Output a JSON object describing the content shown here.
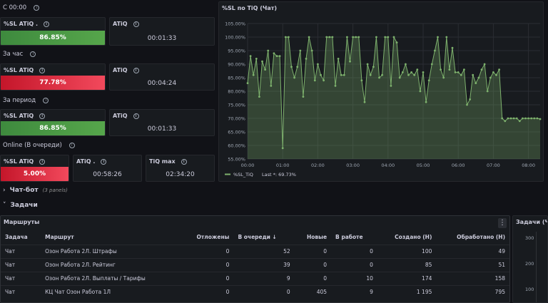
{
  "rows": {
    "r1": "С 00:00",
    "r2": "За час",
    "r3": "За период",
    "r4": "Online (В очереди)"
  },
  "stats": {
    "s1_sl": {
      "title": "%SL ATiQ .",
      "value": "86.85%"
    },
    "s1_atiq": {
      "title": "ATiQ",
      "value": "00:01:33"
    },
    "s2_sl": {
      "title": "%SL ATiQ",
      "value": "77.78%"
    },
    "s2_atiq": {
      "title": "ATiQ",
      "value": "00:04:24"
    },
    "s3_sl": {
      "title": "%SL ATiQ",
      "value": "86.85%"
    },
    "s3_atiq": {
      "title": "ATiQ",
      "value": "00:01:33"
    },
    "s4_sl": {
      "title": "%SL ATiQ",
      "value": "5.00%"
    },
    "s4_atiq": {
      "title": "ATiQ .",
      "value": "00:58:26"
    },
    "s4_max": {
      "title": "TiQ max",
      "value": "02:34:20"
    }
  },
  "chart_panel": {
    "title": "%SL по TiQ (Чат)"
  },
  "sections": {
    "chatbot": "Чат-бот",
    "chatbot_note": "(3 panels)",
    "tasks": "Задачи"
  },
  "table_panel": {
    "title": "Маршруты",
    "menu_icon": "kebab-menu-icon",
    "columns": [
      "Задача",
      "Маршрут",
      "Отложены",
      "В очереди ↓",
      "Новые",
      "В работе",
      "Создано (Н)",
      "Обработано (Н)"
    ],
    "rows": [
      [
        "Чат",
        "Озон Работа 2Л. Штрафы",
        "0",
        "52",
        "0",
        "0",
        "100",
        "49"
      ],
      [
        "Чат",
        "Озон Работа 2Л. Рейтинг",
        "0",
        "39",
        "0",
        "0",
        "85",
        "51"
      ],
      [
        "Чат",
        "Озон Работа 2Л. Выплаты / Тарифы",
        "0",
        "9",
        "0",
        "10",
        "174",
        "158"
      ],
      [
        "Чат",
        "КЦ Чат Озон Работа 1Л",
        "0",
        "0",
        "405",
        "9",
        "1 195",
        "795"
      ]
    ]
  },
  "right_panel": {
    "title": "Задачи (Ча",
    "ticks": [
      "100",
      "200",
      "300"
    ]
  },
  "colors": {
    "green": "#56a64b",
    "red": "#f2495c",
    "series": "#7eb26d"
  },
  "chart_data": {
    "type": "area",
    "title": "%SL по TiQ (Чат)",
    "x": [
      "00:00",
      "00:05",
      "00:10",
      "00:15",
      "00:20",
      "00:25",
      "00:30",
      "00:35",
      "00:40",
      "00:45",
      "00:50",
      "00:55",
      "01:00",
      "01:05",
      "01:10",
      "01:15",
      "01:20",
      "01:25",
      "01:30",
      "01:35",
      "01:40",
      "01:45",
      "01:50",
      "01:55",
      "02:00",
      "02:05",
      "02:10",
      "02:15",
      "02:20",
      "02:25",
      "02:30",
      "02:35",
      "02:40",
      "02:45",
      "02:50",
      "02:55",
      "03:00",
      "03:05",
      "03:10",
      "03:15",
      "03:20",
      "03:25",
      "03:30",
      "03:35",
      "03:40",
      "03:45",
      "03:50",
      "03:55",
      "04:00",
      "04:05",
      "04:10",
      "04:15",
      "04:20",
      "04:25",
      "04:30",
      "04:35",
      "04:40",
      "04:45",
      "04:50",
      "04:55",
      "05:00",
      "05:05",
      "05:10",
      "05:15",
      "05:20",
      "05:25",
      "05:30",
      "05:35",
      "05:40",
      "05:45",
      "05:50",
      "05:55",
      "06:00",
      "06:05",
      "06:10",
      "06:15",
      "06:20",
      "06:25",
      "06:30",
      "06:35",
      "06:40",
      "06:45",
      "06:50",
      "06:55",
      "07:00",
      "07:05",
      "07:10",
      "07:15",
      "07:20",
      "07:25",
      "07:30",
      "07:35",
      "07:40",
      "07:45",
      "07:50",
      "07:55",
      "08:00",
      "08:05",
      "08:10",
      "08:15",
      "08:20"
    ],
    "series": [
      {
        "name": "%SL_TiQ",
        "values": [
          83,
          93,
          86,
          92,
          78,
          91,
          88,
          95,
          82,
          94,
          93,
          93,
          59,
          100,
          100,
          89,
          85,
          89,
          95,
          78,
          92,
          100,
          95,
          84,
          90,
          86,
          84,
          100,
          100,
          100,
          82,
          92,
          86,
          86,
          100,
          91,
          100,
          100,
          100,
          84,
          76,
          90,
          86,
          89,
          100,
          85,
          86,
          100,
          100,
          82,
          100,
          98,
          85,
          87,
          90,
          86,
          87,
          86,
          88,
          80,
          87,
          76,
          84,
          90,
          95,
          100,
          88,
          85,
          100,
          88,
          96,
          87,
          87,
          86,
          88,
          75,
          77,
          86,
          83,
          85,
          88,
          90,
          80,
          85,
          87,
          86,
          88,
          70,
          69,
          70,
          70,
          70,
          70,
          69,
          70,
          70,
          70,
          70,
          70,
          70,
          69.73
        ]
      }
    ],
    "xticks": [
      "00:00",
      "01:00",
      "02:00",
      "03:00",
      "04:00",
      "05:00",
      "06:00",
      "07:00",
      "08:00"
    ],
    "yticks": [
      "55.00%",
      "60.00%",
      "65.00%",
      "70.00%",
      "75.00%",
      "80.00%",
      "85.00%",
      "90.00%",
      "95.00%",
      "100.00%",
      "105.00%"
    ],
    "ylim": [
      55,
      105
    ],
    "legend": "%SL_TiQ",
    "legend_last": "Last *: 69.73%",
    "legend_position": "bottom-left",
    "grid": true
  }
}
